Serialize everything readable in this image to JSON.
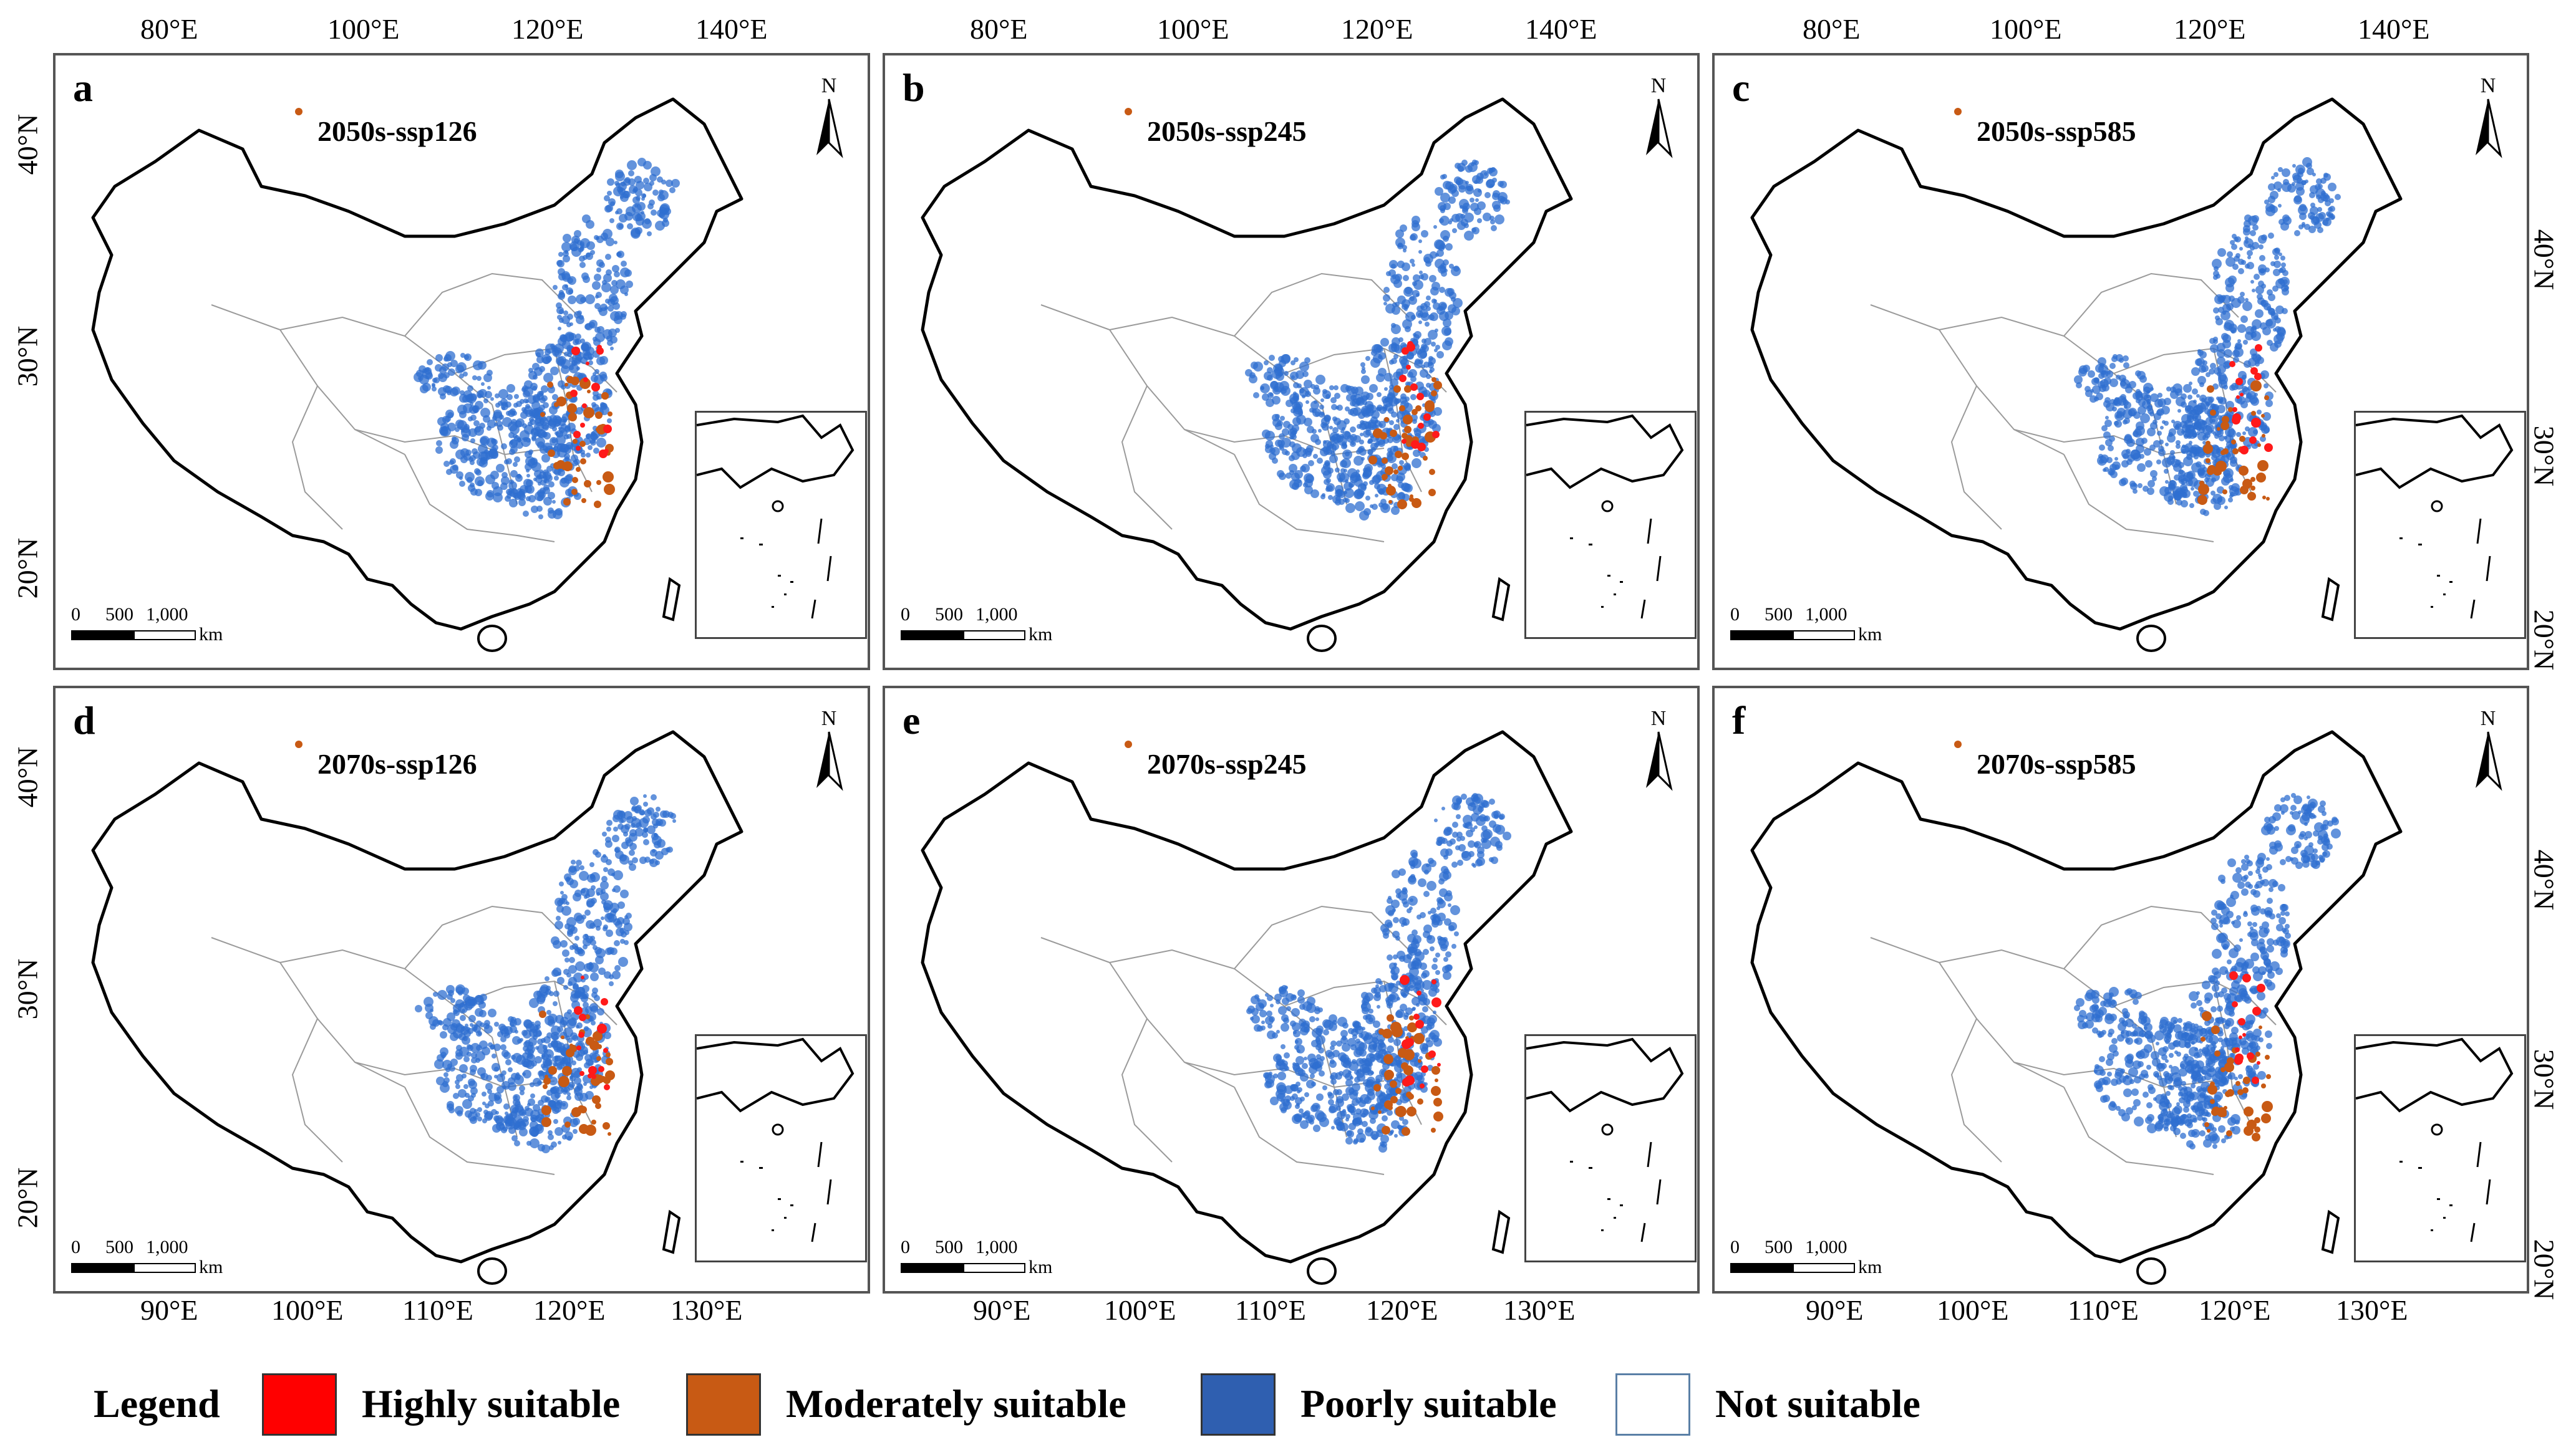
{
  "panels": [
    {
      "letter": "a",
      "title": "2050s-ssp126"
    },
    {
      "letter": "b",
      "title": "2050s-ssp245"
    },
    {
      "letter": "c",
      "title": "2050s-ssp585"
    },
    {
      "letter": "d",
      "title": "2070s-ssp126"
    },
    {
      "letter": "e",
      "title": "2070s-ssp245"
    },
    {
      "letter": "f",
      "title": "2070s-ssp585"
    }
  ],
  "north_label": "N",
  "scale": {
    "z": "0",
    "m": "500",
    "t": "1,000",
    "u": "km"
  },
  "top_ticks": [
    "80°E",
    "100°E",
    "120°E",
    "140°E"
  ],
  "bottom_ticks": [
    "90°E",
    "100°E",
    "110°E",
    "120°E",
    "130°E"
  ],
  "left_ticks": [
    "40°N",
    "30°N",
    "20°N"
  ],
  "right_ticks": [
    "40°N",
    "30°N",
    "20°N"
  ],
  "legend": {
    "title": "Legend",
    "items": [
      {
        "label": "Highly suitable",
        "color": "#ff0000"
      },
      {
        "label": "Moderately suitable",
        "color": "#c85a14"
      },
      {
        "label": "Poorly suitable",
        "color": "#2f5fb0"
      },
      {
        "label": "Not suitable",
        "color": "#ffffff"
      }
    ]
  }
}
